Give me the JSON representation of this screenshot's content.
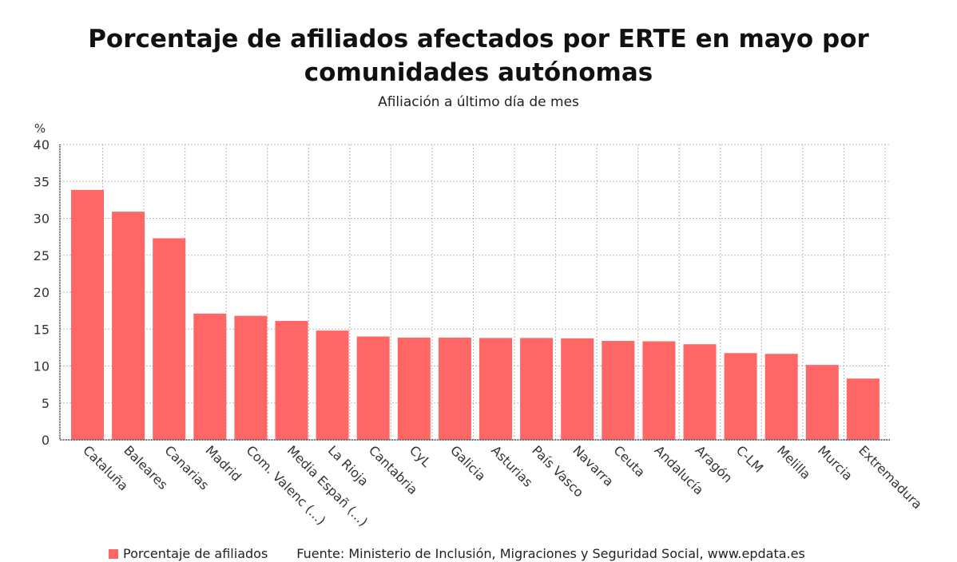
{
  "chart_data": {
    "type": "bar",
    "title": "Porcentaje de afiliados afectados por ERTE en mayo por comunidades autónomas",
    "subtitle": "Afiliación a último día de mes",
    "ylabel": "%",
    "ylim": [
      0,
      40
    ],
    "yticks": [
      0,
      5,
      10,
      15,
      20,
      25,
      30,
      35,
      40
    ],
    "grid": true,
    "legend_position": "bottom",
    "categories": [
      "Cataluña",
      "Baleares",
      "Canarias",
      "Madrid",
      "Com. Valenc (...)",
      "Media Españ (...)",
      "La Rioja",
      "Cantabria",
      "CyL",
      "Galicia",
      "Asturias",
      "País Vasco",
      "Navarra",
      "Ceuta",
      "Andalucía",
      "Aragón",
      "C-LM",
      "Melilla",
      "Murcia",
      "Extremadura"
    ],
    "series": [
      {
        "name": "Porcentaje de afiliados",
        "color": "#ff6666",
        "values": [
          33.85,
          30.9,
          27.3,
          17.1,
          16.8,
          16.1,
          14.8,
          14.0,
          13.85,
          13.85,
          13.8,
          13.8,
          13.75,
          13.4,
          13.35,
          12.95,
          11.75,
          11.65,
          10.15,
          8.3
        ]
      }
    ],
    "source": "Fuente: Ministerio de Inclusión, Migraciones y Seguridad Social, www.epdata.es"
  }
}
